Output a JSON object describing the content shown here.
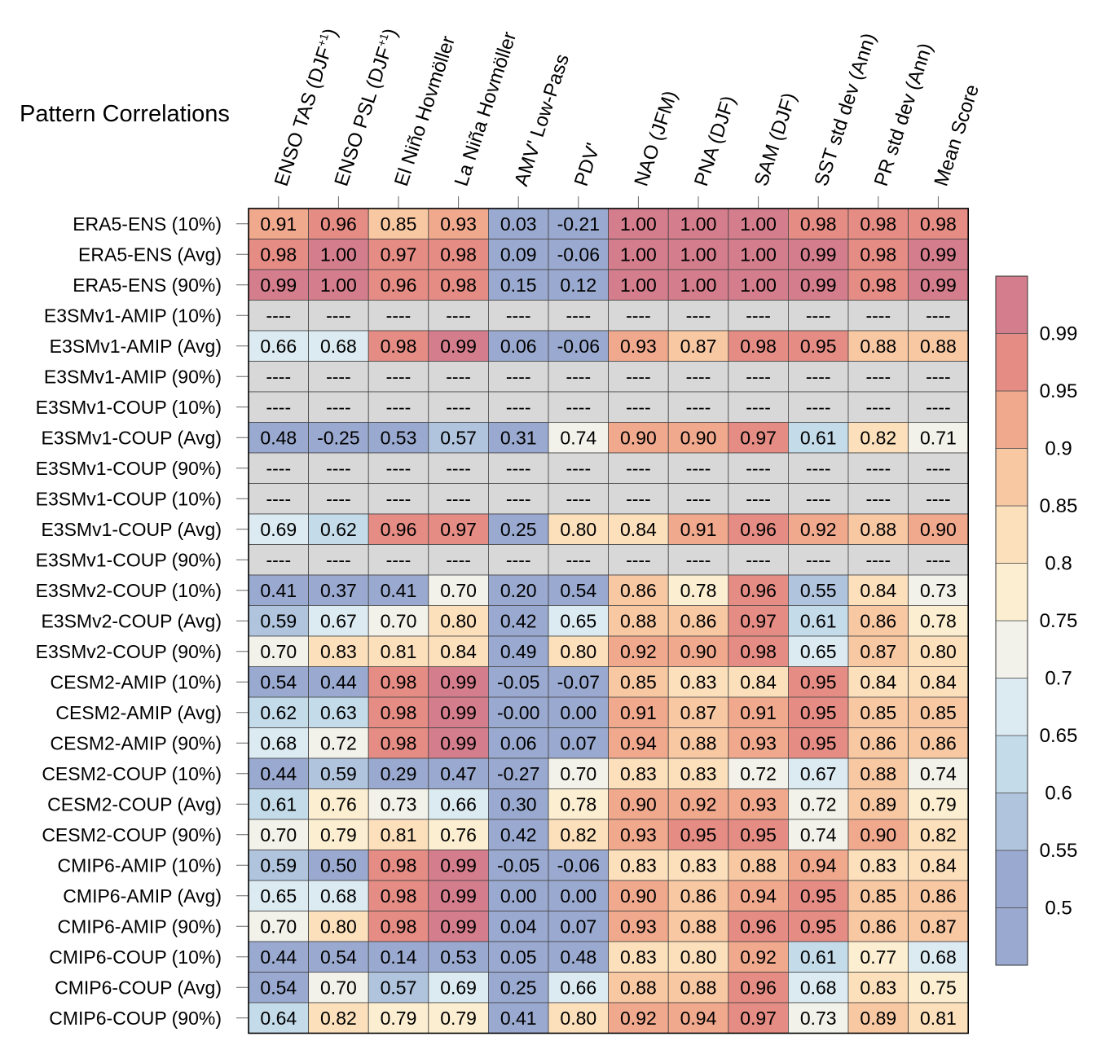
{
  "chart_data": {
    "type": "heatmap",
    "title": "Pattern Correlations",
    "columns": [
      "ENSO TAS (DJF+1)",
      "ENSO PSL (DJF+1)",
      "El Niño Hovmöller",
      "La Niña Hovmöller",
      "AMV' Low-Pass",
      "PDV'",
      "NAO (JFM)",
      "PNA (DJF)",
      "SAM (DJF)",
      "SST std dev (Ann)",
      "PR std dev (Ann)",
      "Mean Score"
    ],
    "rows": [
      "ERA5-ENS (10%)",
      "ERA5-ENS (Avg)",
      "ERA5-ENS (90%)",
      "E3SMv1-AMIP (10%)",
      "E3SMv1-AMIP (Avg)",
      "E3SMv1-AMIP (90%)",
      "E3SMv1-COUP (10%)",
      "E3SMv1-COUP (Avg)",
      "E3SMv1-COUP (90%)",
      "E3SMv1-COUP (10%)",
      "E3SMv1-COUP (Avg)",
      "E3SMv1-COUP (90%)",
      "E3SMv2-COUP (10%)",
      "E3SMv2-COUP (Avg)",
      "E3SMv2-COUP (90%)",
      "CESM2-AMIP (10%)",
      "CESM2-AMIP (Avg)",
      "CESM2-AMIP (90%)",
      "CESM2-COUP (10%)",
      "CESM2-COUP (Avg)",
      "CESM2-COUP (90%)",
      "CMIP6-AMIP (10%)",
      "CMIP6-AMIP (Avg)",
      "CMIP6-AMIP (90%)",
      "CMIP6-COUP (10%)",
      "CMIP6-COUP (Avg)",
      "CMIP6-COUP (90%)"
    ],
    "values": [
      [
        "0.91",
        "0.96",
        "0.85",
        "0.93",
        "0.03",
        "-0.21",
        "1.00",
        "1.00",
        "1.00",
        "0.98",
        "0.98",
        "0.98"
      ],
      [
        "0.98",
        "1.00",
        "0.97",
        "0.98",
        "0.09",
        "-0.06",
        "1.00",
        "1.00",
        "1.00",
        "0.99",
        "0.98",
        "0.99"
      ],
      [
        "0.99",
        "1.00",
        "0.96",
        "0.98",
        "0.15",
        "0.12",
        "1.00",
        "1.00",
        "1.00",
        "0.99",
        "0.98",
        "0.99"
      ],
      [
        "----",
        "----",
        "----",
        "----",
        "----",
        "----",
        "----",
        "----",
        "----",
        "----",
        "----",
        "----"
      ],
      [
        "0.66",
        "0.68",
        "0.98",
        "0.99",
        "0.06",
        "-0.06",
        "0.93",
        "0.87",
        "0.98",
        "0.95",
        "0.88",
        "0.88"
      ],
      [
        "----",
        "----",
        "----",
        "----",
        "----",
        "----",
        "----",
        "----",
        "----",
        "----",
        "----",
        "----"
      ],
      [
        "----",
        "----",
        "----",
        "----",
        "----",
        "----",
        "----",
        "----",
        "----",
        "----",
        "----",
        "----"
      ],
      [
        "0.48",
        "-0.25",
        "0.53",
        "0.57",
        "0.31",
        "0.74",
        "0.90",
        "0.90",
        "0.97",
        "0.61",
        "0.82",
        "0.71"
      ],
      [
        "----",
        "----",
        "----",
        "----",
        "----",
        "----",
        "----",
        "----",
        "----",
        "----",
        "----",
        "----"
      ],
      [
        "----",
        "----",
        "----",
        "----",
        "----",
        "----",
        "----",
        "----",
        "----",
        "----",
        "----",
        "----"
      ],
      [
        "0.69",
        "0.62",
        "0.96",
        "0.97",
        "0.25",
        "0.80",
        "0.84",
        "0.91",
        "0.96",
        "0.92",
        "0.88",
        "0.90"
      ],
      [
        "----",
        "----",
        "----",
        "----",
        "----",
        "----",
        "----",
        "----",
        "----",
        "----",
        "----",
        "----"
      ],
      [
        "0.41",
        "0.37",
        "0.41",
        "0.70",
        "0.20",
        "0.54",
        "0.86",
        "0.78",
        "0.96",
        "0.55",
        "0.84",
        "0.73"
      ],
      [
        "0.59",
        "0.67",
        "0.70",
        "0.80",
        "0.42",
        "0.65",
        "0.88",
        "0.86",
        "0.97",
        "0.61",
        "0.86",
        "0.78"
      ],
      [
        "0.70",
        "0.83",
        "0.81",
        "0.84",
        "0.49",
        "0.80",
        "0.92",
        "0.90",
        "0.98",
        "0.65",
        "0.87",
        "0.80"
      ],
      [
        "0.54",
        "0.44",
        "0.98",
        "0.99",
        "-0.05",
        "-0.07",
        "0.85",
        "0.83",
        "0.84",
        "0.95",
        "0.84",
        "0.84"
      ],
      [
        "0.62",
        "0.63",
        "0.98",
        "0.99",
        "-0.00",
        "0.00",
        "0.91",
        "0.87",
        "0.91",
        "0.95",
        "0.85",
        "0.85"
      ],
      [
        "0.68",
        "0.72",
        "0.98",
        "0.99",
        "0.06",
        "0.07",
        "0.94",
        "0.88",
        "0.93",
        "0.95",
        "0.86",
        "0.86"
      ],
      [
        "0.44",
        "0.59",
        "0.29",
        "0.47",
        "-0.27",
        "0.70",
        "0.83",
        "0.83",
        "0.72",
        "0.67",
        "0.88",
        "0.74"
      ],
      [
        "0.61",
        "0.76",
        "0.73",
        "0.66",
        "0.30",
        "0.78",
        "0.90",
        "0.92",
        "0.93",
        "0.72",
        "0.89",
        "0.79"
      ],
      [
        "0.70",
        "0.79",
        "0.81",
        "0.76",
        "0.42",
        "0.82",
        "0.93",
        "0.95",
        "0.95",
        "0.74",
        "0.90",
        "0.82"
      ],
      [
        "0.59",
        "0.50",
        "0.98",
        "0.99",
        "-0.05",
        "-0.06",
        "0.83",
        "0.83",
        "0.88",
        "0.94",
        "0.83",
        "0.84"
      ],
      [
        "0.65",
        "0.68",
        "0.98",
        "0.99",
        "0.00",
        "0.00",
        "0.90",
        "0.86",
        "0.94",
        "0.95",
        "0.85",
        "0.86"
      ],
      [
        "0.70",
        "0.80",
        "0.98",
        "0.99",
        "0.04",
        "0.07",
        "0.93",
        "0.88",
        "0.96",
        "0.95",
        "0.86",
        "0.87"
      ],
      [
        "0.44",
        "0.54",
        "0.14",
        "0.53",
        "0.05",
        "0.48",
        "0.83",
        "0.80",
        "0.92",
        "0.61",
        "0.77",
        "0.68"
      ],
      [
        "0.54",
        "0.70",
        "0.57",
        "0.69",
        "0.25",
        "0.66",
        "0.88",
        "0.88",
        "0.96",
        "0.68",
        "0.83",
        "0.75"
      ],
      [
        "0.64",
        "0.82",
        "0.79",
        "0.79",
        "0.41",
        "0.80",
        "0.92",
        "0.94",
        "0.97",
        "0.73",
        "0.89",
        "0.81"
      ]
    ],
    "missing_label": "----",
    "colorbar": {
      "tick_labels": [
        "0.5",
        "0.55",
        "0.6",
        "0.65",
        "0.7",
        "0.75",
        "0.8",
        "0.85",
        "0.9",
        "0.95",
        "0.99"
      ],
      "thresholds": [
        0.5,
        0.55,
        0.6,
        0.65,
        0.7,
        0.75,
        0.8,
        0.85,
        0.9,
        0.95,
        0.99
      ],
      "colors": [
        "#9aa9cf",
        "#b0c4dd",
        "#c4dbe9",
        "#dcebf2",
        "#f2f2ea",
        "#fcefd1",
        "#fce0bc",
        "#f8c8a3",
        "#f1a98e",
        "#e58c84",
        "#d47d8c"
      ],
      "missing_color": "#d8d8d8"
    }
  }
}
